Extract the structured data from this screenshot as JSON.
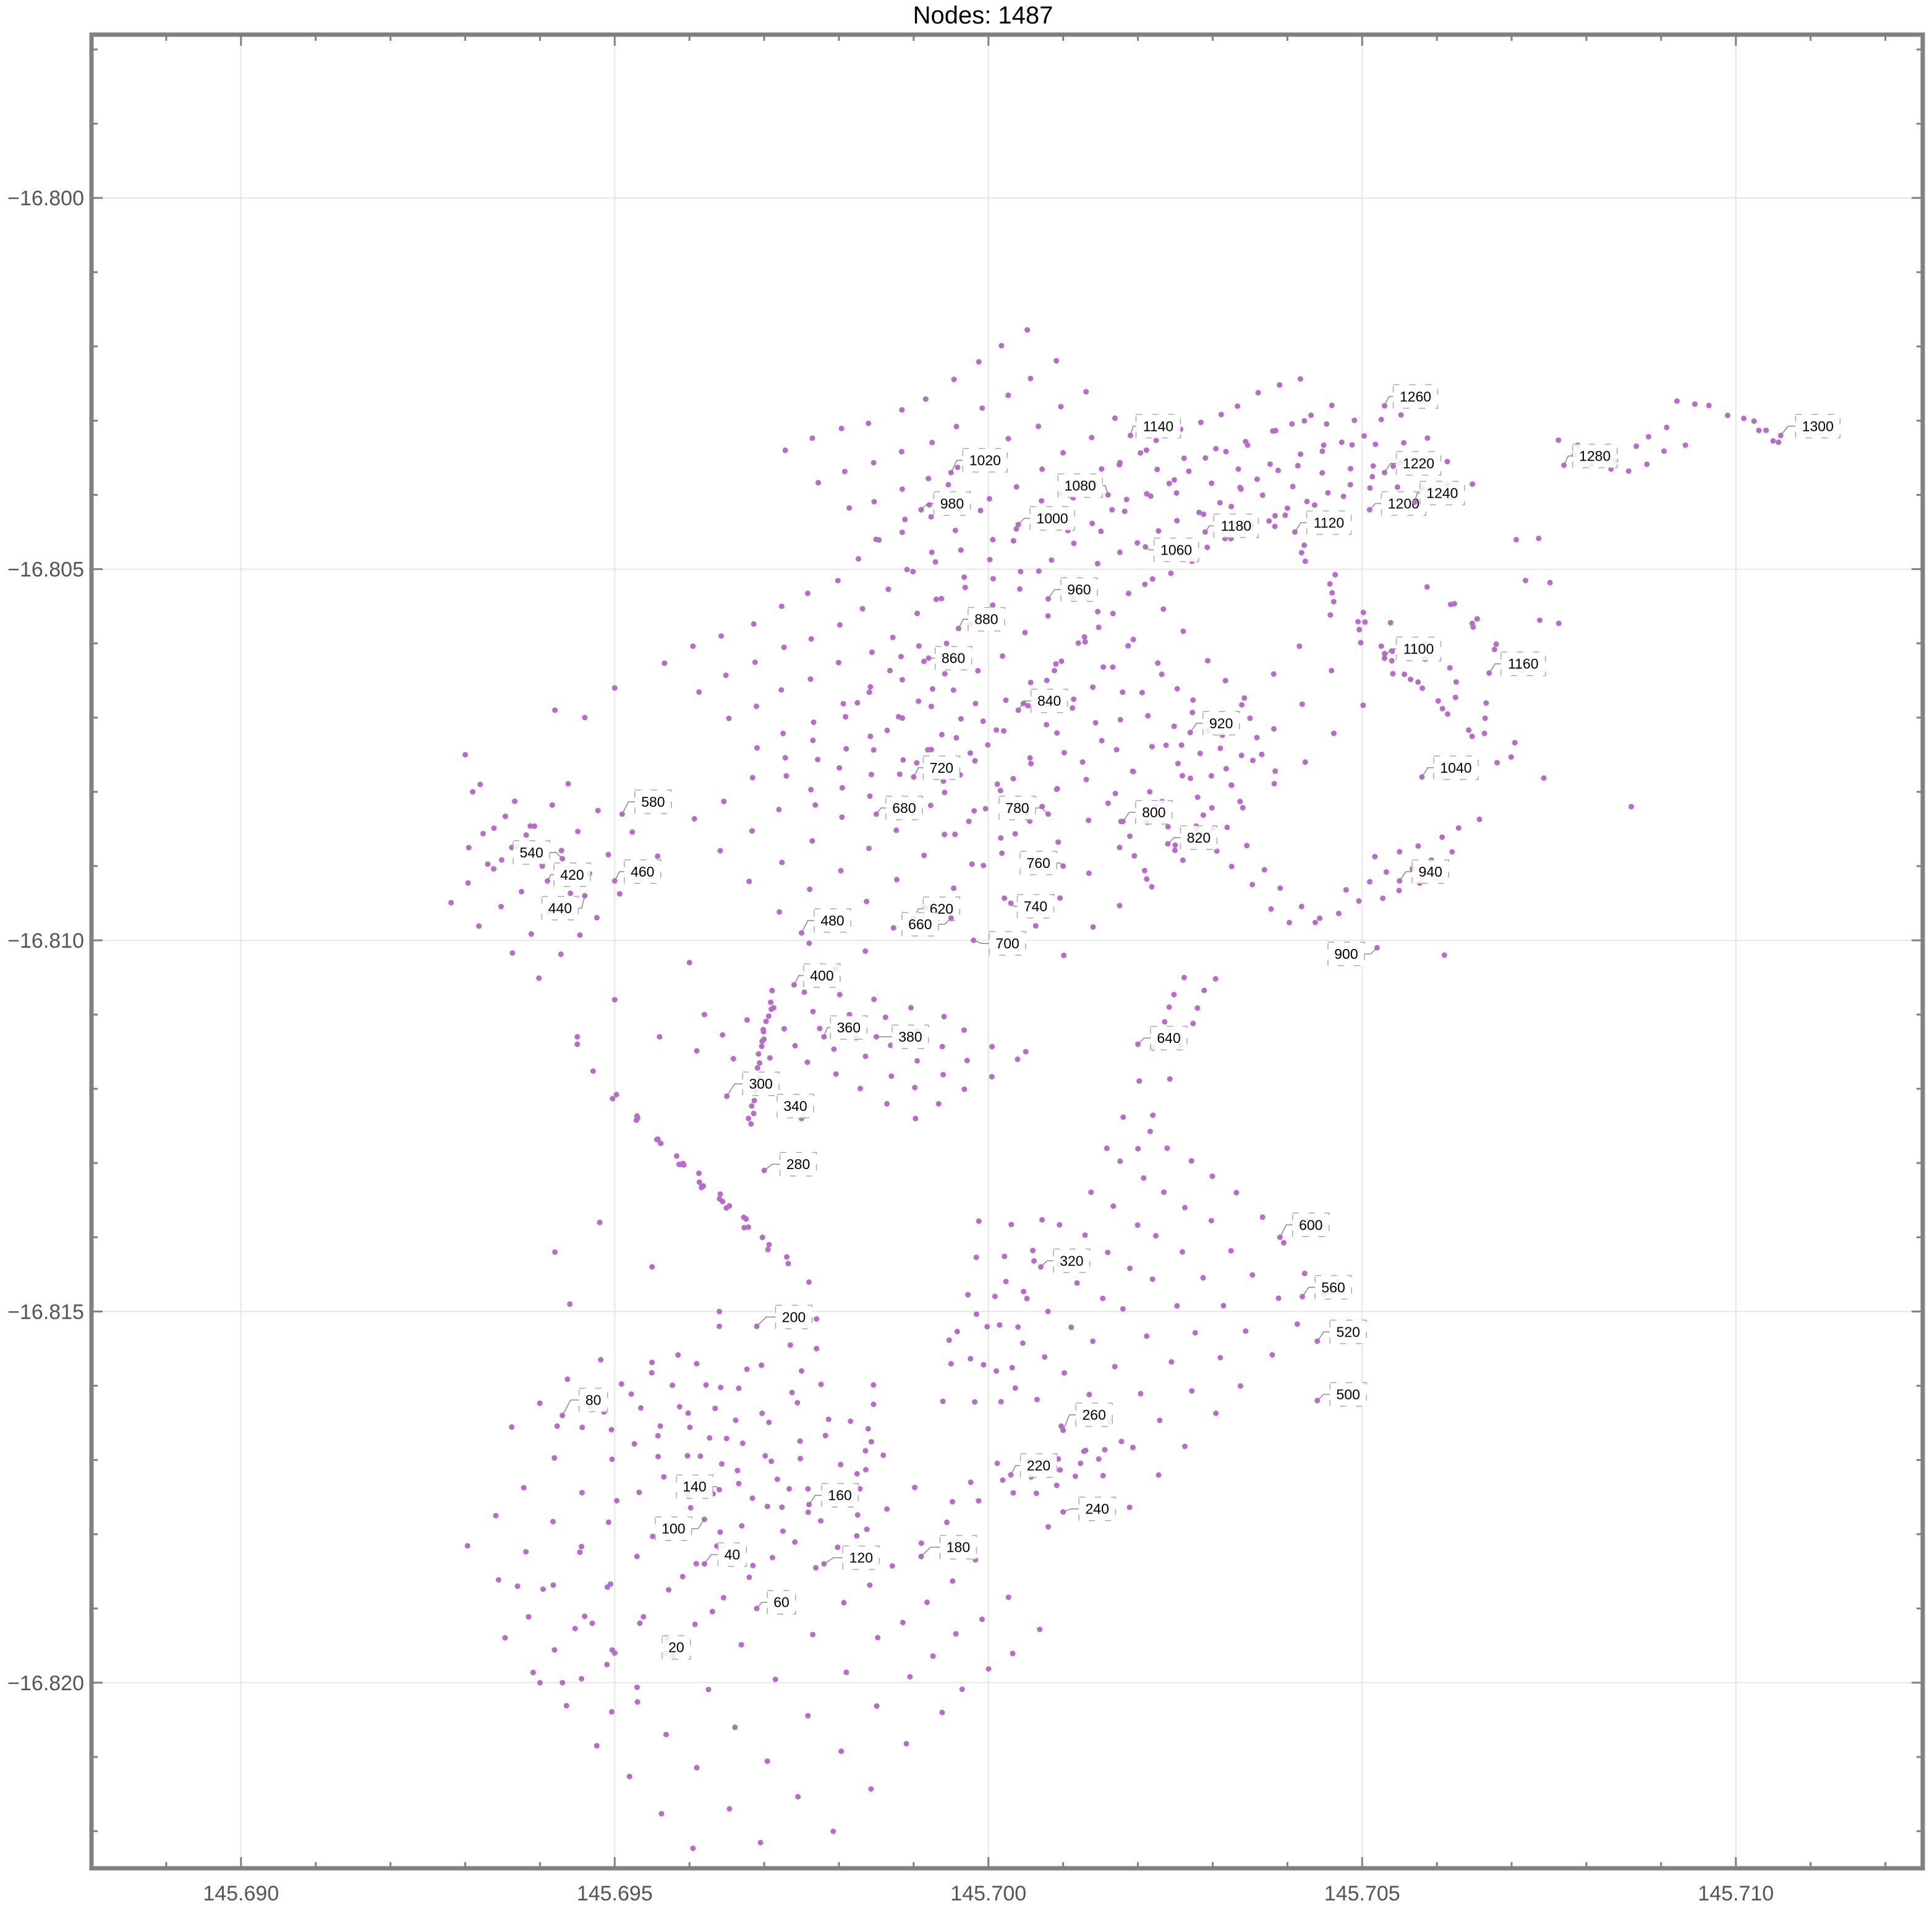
{
  "chart_data": {
    "type": "scatter",
    "title": "Nodes: 1487",
    "xlabel": "",
    "ylabel": "",
    "xlim": [
      145.688,
      145.7125
    ],
    "ylim": [
      -16.8225,
      -16.7978
    ],
    "xticks": [
      145.69,
      145.695,
      145.7,
      145.705,
      145.71
    ],
    "xtick_labels": [
      "145.690",
      "145.695",
      "145.700",
      "145.705",
      "145.710"
    ],
    "yticks": [
      -16.8,
      -16.805,
      -16.81,
      -16.815,
      -16.82
    ],
    "ytick_labels": [
      "−16.800",
      "−16.805",
      "−16.810",
      "−16.815",
      "−16.820"
    ],
    "grid": true,
    "point_color": "#b86bcb",
    "frame_color": "#808080",
    "grid_color": "#e6e6e6",
    "clusters": [
      {
        "path": [
          [
            145.6952,
            -16.8213
          ],
          [
            145.6975,
            -16.8186
          ],
          [
            145.699,
            -16.8174
          ]
        ],
        "cols": 9,
        "rows": 10,
        "dx": 0.00042,
        "dy": -0.00048
      },
      {
        "path": [
          [
            145.694,
            -16.8193
          ],
          [
            145.6955,
            -16.8177
          ],
          [
            145.6968,
            -16.8167
          ]
        ],
        "cols": 6,
        "rows": 9,
        "dx": 0.00038,
        "dy": -0.00045
      },
      {
        "path": [
          [
            145.6942,
            -16.8161
          ],
          [
            145.6962,
            -16.8162
          ],
          [
            145.6978,
            -16.8172
          ]
        ],
        "cols": 4,
        "rows": 7,
        "dx": 0.0004,
        "dy": 0.0003
      },
      {
        "path": [
          [
            145.6953,
            -16.8124
          ],
          [
            145.6962,
            -16.8133
          ],
          [
            145.697,
            -16.814
          ]
        ],
        "cols": 5,
        "rows": 7,
        "dx": 0.0003,
        "dy": -0.0003
      },
      {
        "path": [
          [
            145.6968,
            -16.8111
          ],
          [
            145.6985,
            -16.8113
          ],
          [
            145.6997,
            -16.812
          ]
        ],
        "cols": 5,
        "rows": 8,
        "dx": 0.00035,
        "dy": 0.0002
      },
      {
        "path": [
          [
            145.6971,
            -16.8107
          ],
          [
            145.6968,
            -16.8125
          ]
        ],
        "cols": 1,
        "rows": 20,
        "dx": 0,
        "dy": 0
      },
      {
        "path": [
          [
            145.6934,
            -16.81
          ],
          [
            145.695,
            -16.8084
          ]
        ],
        "cols": 4,
        "rows": 7,
        "dx": 0.0004,
        "dy": -0.00032
      },
      {
        "path": [
          [
            145.6932,
            -16.8089
          ],
          [
            145.6938,
            -16.8083
          ]
        ],
        "cols": 2,
        "rows": 5,
        "dx": 0.0003,
        "dy": -0.0003
      },
      {
        "path": [
          [
            145.697,
            -16.8094
          ],
          [
            145.699,
            -16.808
          ],
          [
            145.7,
            -16.807
          ]
        ],
        "cols": 6,
        "rows": 11,
        "dx": 0.00038,
        "dy": -0.0004
      },
      {
        "path": [
          [
            145.6967,
            -16.8072
          ],
          [
            145.6988,
            -16.8062
          ],
          [
            145.7005,
            -16.8048
          ]
        ],
        "cols": 6,
        "rows": 12,
        "dx": 0.0004,
        "dy": -0.00038
      },
      {
        "path": [
          [
            145.6983,
            -16.8044
          ],
          [
            145.7,
            -16.8038
          ],
          [
            145.7015,
            -16.8028
          ]
        ],
        "cols": 6,
        "rows": 10,
        "dx": 0.0004,
        "dy": -0.0004
      },
      {
        "path": [
          [
            145.7,
            -16.8092
          ],
          [
            145.7015,
            -16.8078
          ],
          [
            145.7025,
            -16.8066
          ]
        ],
        "cols": 6,
        "rows": 9,
        "dx": 0.0004,
        "dy": -0.0004
      },
      {
        "path": [
          [
            145.7013,
            -16.806
          ],
          [
            145.7025,
            -16.8075
          ],
          [
            145.703,
            -16.8085
          ]
        ],
        "cols": 5,
        "rows": 10,
        "dx": -0.0004,
        "dy": -0.0004
      },
      {
        "path": [
          [
            145.7013,
            -16.8047
          ],
          [
            145.703,
            -16.8038
          ],
          [
            145.7048,
            -16.803
          ]
        ],
        "cols": 4,
        "rows": 14,
        "dx": 0.0004,
        "dy": -0.0004
      },
      {
        "path": [
          [
            145.7027,
            -16.8041
          ],
          [
            145.7045,
            -16.8035
          ],
          [
            145.706,
            -16.8034
          ]
        ],
        "cols": 4,
        "rows": 10,
        "dx": 0.0003,
        "dy": -0.0003
      },
      {
        "path": [
          [
            145.704,
            -16.8045
          ],
          [
            145.7052,
            -16.806
          ],
          [
            145.7062,
            -16.807
          ]
        ],
        "cols": 4,
        "rows": 7,
        "dx": 0.0004,
        "dy": -0.0004
      },
      {
        "path": [
          [
            145.703,
            -16.8078
          ],
          [
            145.704,
            -16.807
          ],
          [
            145.705,
            -16.806
          ]
        ],
        "cols": 3,
        "rows": 6,
        "dx": 0.0004,
        "dy": -0.0004
      },
      {
        "path": [
          [
            145.7058,
            -16.806
          ],
          [
            145.7065,
            -16.8068
          ],
          [
            145.707,
            -16.8075
          ]
        ],
        "cols": 3,
        "rows": 4,
        "dx": 0.0004,
        "dy": -0.0003
      },
      {
        "path": [
          [
            145.7062,
            -16.8055
          ],
          [
            145.7068,
            -16.806
          ]
        ],
        "cols": 3,
        "rows": 3,
        "dx": 0.0003,
        "dy": -0.0003
      },
      {
        "path": [
          [
            145.7048,
            -16.8093
          ],
          [
            145.7062,
            -16.8088
          ]
        ],
        "cols": 3,
        "rows": 6,
        "dx": -0.0004,
        "dy": -0.0004
      },
      {
        "path": [
          [
            145.703,
            -16.8085
          ],
          [
            145.7042,
            -16.8098
          ]
        ],
        "cols": 2,
        "rows": 6,
        "dx": 0.0004,
        "dy": 0
      },
      {
        "path": [
          [
            145.7072,
            -16.8046
          ],
          [
            145.7075,
            -16.8057
          ]
        ],
        "cols": 2,
        "rows": 3,
        "dx": 0.0003,
        "dy": 0
      },
      {
        "path": [
          [
            145.7077,
            -16.8034
          ],
          [
            145.7085,
            -16.8036
          ],
          [
            145.7092,
            -16.8032
          ]
        ],
        "cols": 2,
        "rows": 7,
        "dx": 0.0002,
        "dy": -0.0002
      },
      {
        "path": [
          [
            145.7092,
            -16.8027
          ],
          [
            145.7102,
            -16.803
          ],
          [
            145.7106,
            -16.8033
          ]
        ],
        "cols": 1,
        "rows": 10,
        "dx": 0,
        "dy": 0
      },
      {
        "path": [
          [
            145.6998,
            -16.8173
          ],
          [
            145.7008,
            -16.8172
          ],
          [
            145.7015,
            -16.817
          ]
        ],
        "cols": 3,
        "rows": 6,
        "dx": 0.0003,
        "dy": 0.00025
      },
      {
        "path": [
          [
            145.6998,
            -16.8162
          ],
          [
            145.7003,
            -16.8138
          ]
        ],
        "cols": 3,
        "rows": 6,
        "dx": 0.0004,
        "dy": 0
      },
      {
        "path": [
          [
            145.7008,
            -16.814
          ],
          [
            145.702,
            -16.8148
          ],
          [
            145.7032,
            -16.8162
          ]
        ],
        "cols": 8,
        "rows": 9,
        "dx": 0.00038,
        "dy": 0.0004
      },
      {
        "path": [
          [
            145.7018,
            -16.8128
          ],
          [
            145.7025,
            -16.8112
          ],
          [
            145.7028,
            -16.8105
          ]
        ],
        "cols": 2,
        "rows": 8,
        "dx": 0.0004,
        "dy": 0
      },
      {
        "path": [
          [
            145.6982,
            -16.818
          ],
          [
            145.6985,
            -16.816
          ]
        ],
        "cols": 1,
        "rows": 8,
        "dx": 0,
        "dy": 0
      }
    ],
    "labeled_nodes": [
      {
        "id": "20",
        "x": 145.6957,
        "y": -16.8194
      },
      {
        "id": "40",
        "x": 145.6962,
        "y": -16.8184
      },
      {
        "id": "60",
        "x": 145.6969,
        "y": -16.819
      },
      {
        "id": "80",
        "x": 145.6943,
        "y": -16.8164
      },
      {
        "id": "100",
        "x": 145.6962,
        "y": -16.8178
      },
      {
        "id": "120",
        "x": 145.6978,
        "y": -16.8184
      },
      {
        "id": "140",
        "x": 145.6964,
        "y": -16.8174
      },
      {
        "id": "160",
        "x": 145.6976,
        "y": -16.8176
      },
      {
        "id": "180",
        "x": 145.6991,
        "y": -16.8183
      },
      {
        "id": "200",
        "x": 145.6969,
        "y": -16.8152
      },
      {
        "id": "220",
        "x": 145.7003,
        "y": -16.8172
      },
      {
        "id": "240",
        "x": 145.701,
        "y": -16.8177
      },
      {
        "id": "260",
        "x": 145.701,
        "y": -16.8166
      },
      {
        "id": "280",
        "x": 145.697,
        "y": -16.8131
      },
      {
        "id": "300",
        "x": 145.6965,
        "y": -16.8121
      },
      {
        "id": "320",
        "x": 145.7007,
        "y": -16.8144
      },
      {
        "id": "340",
        "x": 145.6975,
        "y": -16.8124
      },
      {
        "id": "360",
        "x": 145.6978,
        "y": -16.8113
      },
      {
        "id": "380",
        "x": 145.6985,
        "y": -16.8113
      },
      {
        "id": "400",
        "x": 145.6974,
        "y": -16.8106
      },
      {
        "id": "420",
        "x": 145.6941,
        "y": -16.8092
      },
      {
        "id": "440",
        "x": 145.6946,
        "y": -16.8094
      },
      {
        "id": "460",
        "x": 145.695,
        "y": -16.8092
      },
      {
        "id": "480",
        "x": 145.6975,
        "y": -16.8099
      },
      {
        "id": "500",
        "x": 145.7044,
        "y": -16.8162
      },
      {
        "id": "520",
        "x": 145.7044,
        "y": -16.8154
      },
      {
        "id": "540",
        "x": 145.6943,
        "y": -16.8089
      },
      {
        "id": "560",
        "x": 145.7042,
        "y": -16.8148
      },
      {
        "id": "580",
        "x": 145.6951,
        "y": -16.8083
      },
      {
        "id": "600",
        "x": 145.7039,
        "y": -16.814
      },
      {
        "id": "620",
        "x": 145.699,
        "y": -16.8097
      },
      {
        "id": "640",
        "x": 145.702,
        "y": -16.8114
      },
      {
        "id": "660",
        "x": 145.6995,
        "y": -16.8097
      },
      {
        "id": "680",
        "x": 145.6985,
        "y": -16.8083
      },
      {
        "id": "700",
        "x": 145.6998,
        "y": -16.81
      },
      {
        "id": "720",
        "x": 145.699,
        "y": -16.8078
      },
      {
        "id": "740",
        "x": 145.7003,
        "y": -16.8095
      },
      {
        "id": "760",
        "x": 145.701,
        "y": -16.809
      },
      {
        "id": "780",
        "x": 145.7008,
        "y": -16.8083
      },
      {
        "id": "800",
        "x": 145.7018,
        "y": -16.8084
      },
      {
        "id": "820",
        "x": 145.7024,
        "y": -16.8087
      },
      {
        "id": "840",
        "x": 145.7004,
        "y": -16.8069
      },
      {
        "id": "860",
        "x": 145.6992,
        "y": -16.8062
      },
      {
        "id": "880",
        "x": 145.6996,
        "y": -16.8058
      },
      {
        "id": "900",
        "x": 145.7052,
        "y": -16.8101
      },
      {
        "id": "920",
        "x": 145.7027,
        "y": -16.8072
      },
      {
        "id": "940",
        "x": 145.7055,
        "y": -16.8092
      },
      {
        "id": "960",
        "x": 145.7008,
        "y": -16.8054
      },
      {
        "id": "980",
        "x": 145.6991,
        "y": -16.8042
      },
      {
        "id": "1000",
        "x": 145.7004,
        "y": -16.8044
      },
      {
        "id": "1020",
        "x": 145.6995,
        "y": -16.8037
      },
      {
        "id": "1040",
        "x": 145.7058,
        "y": -16.8078
      },
      {
        "id": "1060",
        "x": 145.7021,
        "y": -16.8047
      },
      {
        "id": "1080",
        "x": 145.7016,
        "y": -16.804
      },
      {
        "id": "1100",
        "x": 145.7053,
        "y": -16.8062
      },
      {
        "id": "1120",
        "x": 145.7041,
        "y": -16.8045
      },
      {
        "id": "1140",
        "x": 145.7019,
        "y": -16.8032
      },
      {
        "id": "1160",
        "x": 145.7067,
        "y": -16.8064
      },
      {
        "id": "1180",
        "x": 145.7029,
        "y": -16.8045
      },
      {
        "id": "1200",
        "x": 145.7051,
        "y": -16.8042
      },
      {
        "id": "1220",
        "x": 145.7053,
        "y": -16.8037
      },
      {
        "id": "1240",
        "x": 145.7057,
        "y": -16.8041
      },
      {
        "id": "1260",
        "x": 145.7053,
        "y": -16.8028
      },
      {
        "id": "1280",
        "x": 145.7077,
        "y": -16.8036
      },
      {
        "id": "1300",
        "x": 145.7106,
        "y": -16.8032
      }
    ],
    "label_offsets": {
      "20": [
        15,
        15
      ],
      "40": [
        45,
        -15
      ],
      "60": [
        40,
        -10
      ],
      "80": [
        50,
        -25
      ],
      "100": [
        -50,
        15
      ],
      "120": [
        60,
        -10
      ],
      "140": [
        -40,
        -5
      ],
      "160": [
        50,
        -15
      ],
      "180": [
        60,
        -15
      ],
      "200": [
        60,
        -15
      ],
      "220": [
        45,
        -15
      ],
      "240": [
        55,
        -5
      ],
      "260": [
        50,
        -25
      ],
      "280": [
        55,
        -10
      ],
      "300": [
        55,
        -20
      ],
      "320": [
        50,
        -10
      ],
      "340": [
        -10,
        -20
      ],
      "360": [
        40,
        -15
      ],
      "380": [
        55,
        0
      ],
      "400": [
        45,
        -15
      ],
      "420": [
        40,
        -10
      ],
      "440": [
        -40,
        20
      ],
      "460": [
        45,
        -15
      ],
      "480": [
        50,
        -20
      ],
      "500": [
        50,
        -10
      ],
      "520": [
        50,
        -15
      ],
      "540": [
        -50,
        -10
      ],
      "560": [
        50,
        -15
      ],
      "580": [
        50,
        -20
      ],
      "600": [
        50,
        -20
      ],
      "620": [
        45,
        -15
      ],
      "640": [
        50,
        -10
      ],
      "660": [
        -50,
        10
      ],
      "680": [
        45,
        -10
      ],
      "700": [
        55,
        5
      ],
      "720": [
        45,
        -15
      ],
      "740": [
        40,
        5
      ],
      "760": [
        -40,
        -5
      ],
      "780": [
        -50,
        -10
      ],
      "800": [
        50,
        -15
      ],
      "820": [
        50,
        -10
      ],
      "840": [
        50,
        -15
      ],
      "860": [
        40,
        0
      ],
      "880": [
        45,
        -15
      ],
      "900": [
        -50,
        10
      ],
      "920": [
        50,
        -15
      ],
      "940": [
        50,
        -15
      ],
      "960": [
        50,
        -15
      ],
      "980": [
        50,
        -10
      ],
      "1000": [
        55,
        -10
      ],
      "1020": [
        55,
        -20
      ],
      "1040": [
        55,
        -15
      ],
      "1060": [
        50,
        5
      ],
      "1080": [
        -45,
        -15
      ],
      "1100": [
        55,
        -15
      ],
      "1120": [
        55,
        -15
      ],
      "1140": [
        45,
        -15
      ],
      "1160": [
        55,
        -15
      ],
      "1180": [
        50,
        -10
      ],
      "1200": [
        55,
        -10
      ],
      "1220": [
        55,
        -15
      ],
      "1240": [
        45,
        -15
      ],
      "1260": [
        50,
        -15
      ],
      "1280": [
        50,
        -15
      ],
      "1300": [
        60,
        -15
      ]
    }
  }
}
